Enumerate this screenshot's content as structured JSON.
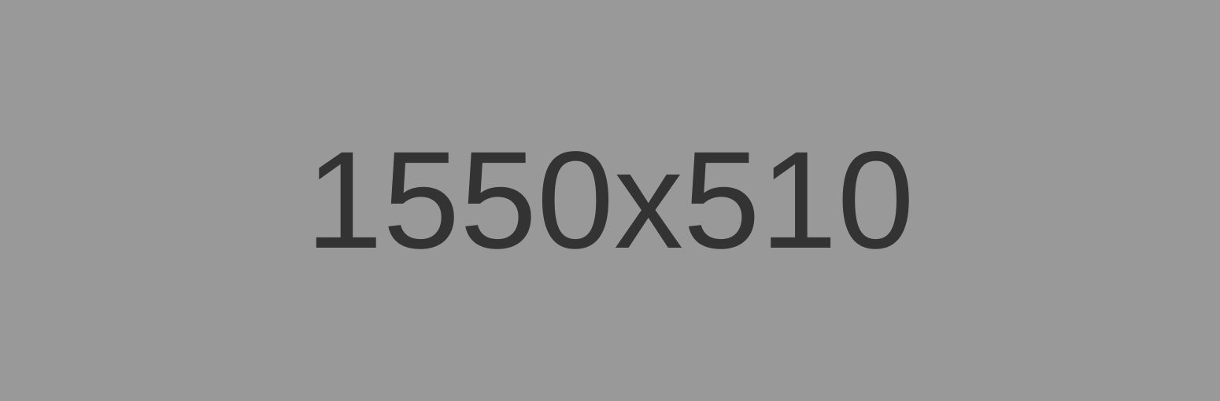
{
  "placeholder": {
    "label": "1550x510",
    "background_color": "#999999",
    "text_color": "#333333"
  }
}
